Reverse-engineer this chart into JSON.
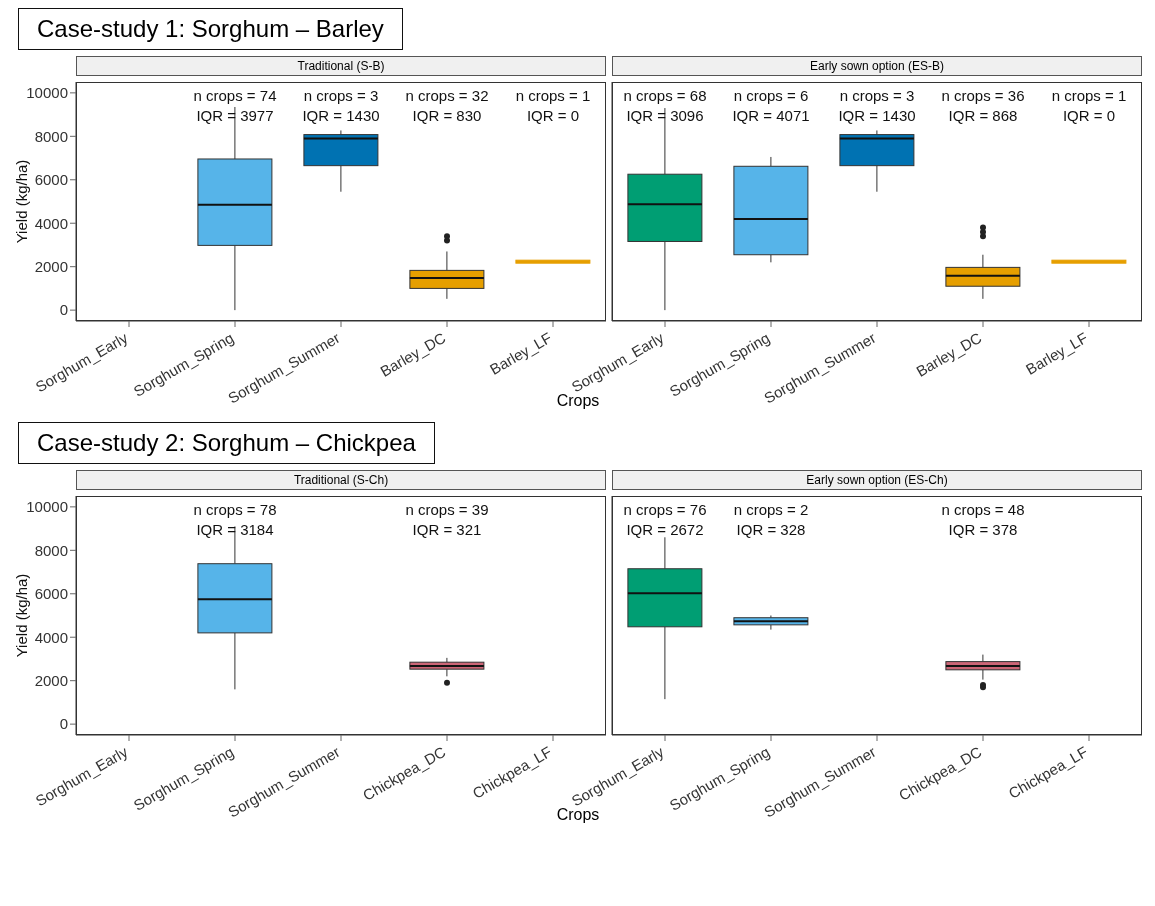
{
  "chart_data": [
    {
      "type": "box",
      "title": "Case-study 1: Sorghum – Barley",
      "subtitle": "Traditional (S-B)",
      "xlabel": "Crops",
      "ylabel": "Yield (kg/ha)",
      "categories": [
        "Sorghum_Early",
        "Sorghum_Spring",
        "Sorghum_Summer",
        "Barley_DC",
        "Barley_LF"
      ],
      "colors": [
        null,
        "#56b4e9",
        "#0072b2",
        "#e69f00",
        "#e69f00"
      ],
      "boxes": [
        null,
        {
          "low": 0,
          "q1": 2980,
          "median": 4850,
          "q3": 6957,
          "high": 9350
        },
        {
          "low": 5450,
          "q1": 6650,
          "median": 7900,
          "q3": 8080,
          "high": 8270
        },
        {
          "low": 520,
          "q1": 1000,
          "median": 1480,
          "q3": 1830,
          "high": 2700,
          "outliers": [
            3200,
            3400
          ]
        },
        {
          "low": 2230,
          "q1": 2230,
          "median": 2230,
          "q3": 2230,
          "high": 2230
        }
      ],
      "ylim": [
        -500,
        10500
      ],
      "yticks": [
        0,
        2000,
        4000,
        6000,
        8000,
        10000
      ],
      "annotations": [
        "n crops = 74\nIQR = 3977",
        "n crops = 3\nIQR = 1430",
        "n crops = 32\nIQR = 830",
        "n crops = 1\nIQR = 0"
      ]
    },
    {
      "type": "box",
      "subtitle": "Early sown option (ES-B)",
      "categories": [
        "Sorghum_Early",
        "Sorghum_Spring",
        "Sorghum_Summer",
        "Barley_DC",
        "Barley_LF"
      ],
      "colors": [
        "#009e73",
        "#56b4e9",
        "#0072b2",
        "#e69f00",
        "#e69f00"
      ],
      "boxes": [
        {
          "low": 0,
          "q1": 3160,
          "median": 4870,
          "q3": 6256,
          "high": 9300
        },
        {
          "low": 2200,
          "q1": 2550,
          "median": 4200,
          "q3": 6621,
          "high": 7050
        },
        {
          "low": 5450,
          "q1": 6650,
          "median": 7900,
          "q3": 8080,
          "high": 8270
        },
        {
          "low": 520,
          "q1": 1100,
          "median": 1580,
          "q3": 1968,
          "high": 2550,
          "outliers": [
            3400,
            3600,
            3800
          ]
        },
        {
          "low": 2230,
          "q1": 2230,
          "median": 2230,
          "q3": 2230,
          "high": 2230
        }
      ],
      "ylim": [
        -500,
        10500
      ],
      "yticks": [
        0,
        2000,
        4000,
        6000,
        8000,
        10000
      ],
      "tick_labels": "x",
      "annotations": [
        "n crops = 68\nIQR = 3096",
        "n crops = 6\nIQR = 4071",
        "n crops = 3\nIQR = 1430",
        "n crops = 36\nIQR = 868",
        "n crops = 1\nIQR = 0"
      ]
    },
    {
      "type": "box",
      "title": "Case-study 2: Sorghum – Chickpea",
      "subtitle": "Traditional (S-Ch)",
      "xlabel": "Crops",
      "ylabel": "Yield (kg/ha)",
      "categories": [
        "Sorghum_Early",
        "Sorghum_Spring",
        "Sorghum_Summer",
        "Chickpea_DC",
        "Chickpea_LF"
      ],
      "colors": [
        null,
        "#56b4e9",
        null,
        "#cc6677",
        null
      ],
      "boxes": [
        null,
        {
          "low": 1600,
          "q1": 4200,
          "median": 5750,
          "q3": 7384,
          "high": 9100
        },
        null,
        {
          "low": 2200,
          "q1": 2530,
          "median": 2680,
          "q3": 2851,
          "high": 3050,
          "outliers": [
            1900
          ]
        },
        null
      ],
      "ylim": [
        -500,
        10500
      ],
      "yticks": [
        0,
        2000,
        4000,
        6000,
        8000,
        10000
      ],
      "annotations": [
        "n crops = 78\nIQR = 3184",
        "n crops = 39\nIQR = 321"
      ]
    },
    {
      "type": "box",
      "subtitle": "Early sown option (ES-Ch)",
      "categories": [
        "Sorghum_Early",
        "Sorghum_Spring",
        "Sorghum_Summer",
        "Chickpea_DC",
        "Chickpea_LF"
      ],
      "colors": [
        "#009e73",
        "#56b4e9",
        null,
        "#cc6677",
        null
      ],
      "boxes": [
        {
          "low": 1150,
          "q1": 4480,
          "median": 6020,
          "q3": 7152,
          "high": 8600
        },
        {
          "low": 4350,
          "q1": 4570,
          "median": 4730,
          "q3": 4898,
          "high": 5000
        },
        null,
        {
          "low": 2050,
          "q1": 2500,
          "median": 2680,
          "q3": 2878,
          "high": 3200,
          "outliers": [
            1800,
            1700
          ]
        },
        null
      ],
      "ylim": [
        -500,
        10500
      ],
      "yticks": [
        0,
        2000,
        4000,
        6000,
        8000,
        10000
      ],
      "tick_labels": "x",
      "annotations": [
        "n crops = 76\nIQR = 2672",
        "n crops = 2\nIQR = 328",
        "n crops = 48\nIQR = 378"
      ]
    }
  ]
}
